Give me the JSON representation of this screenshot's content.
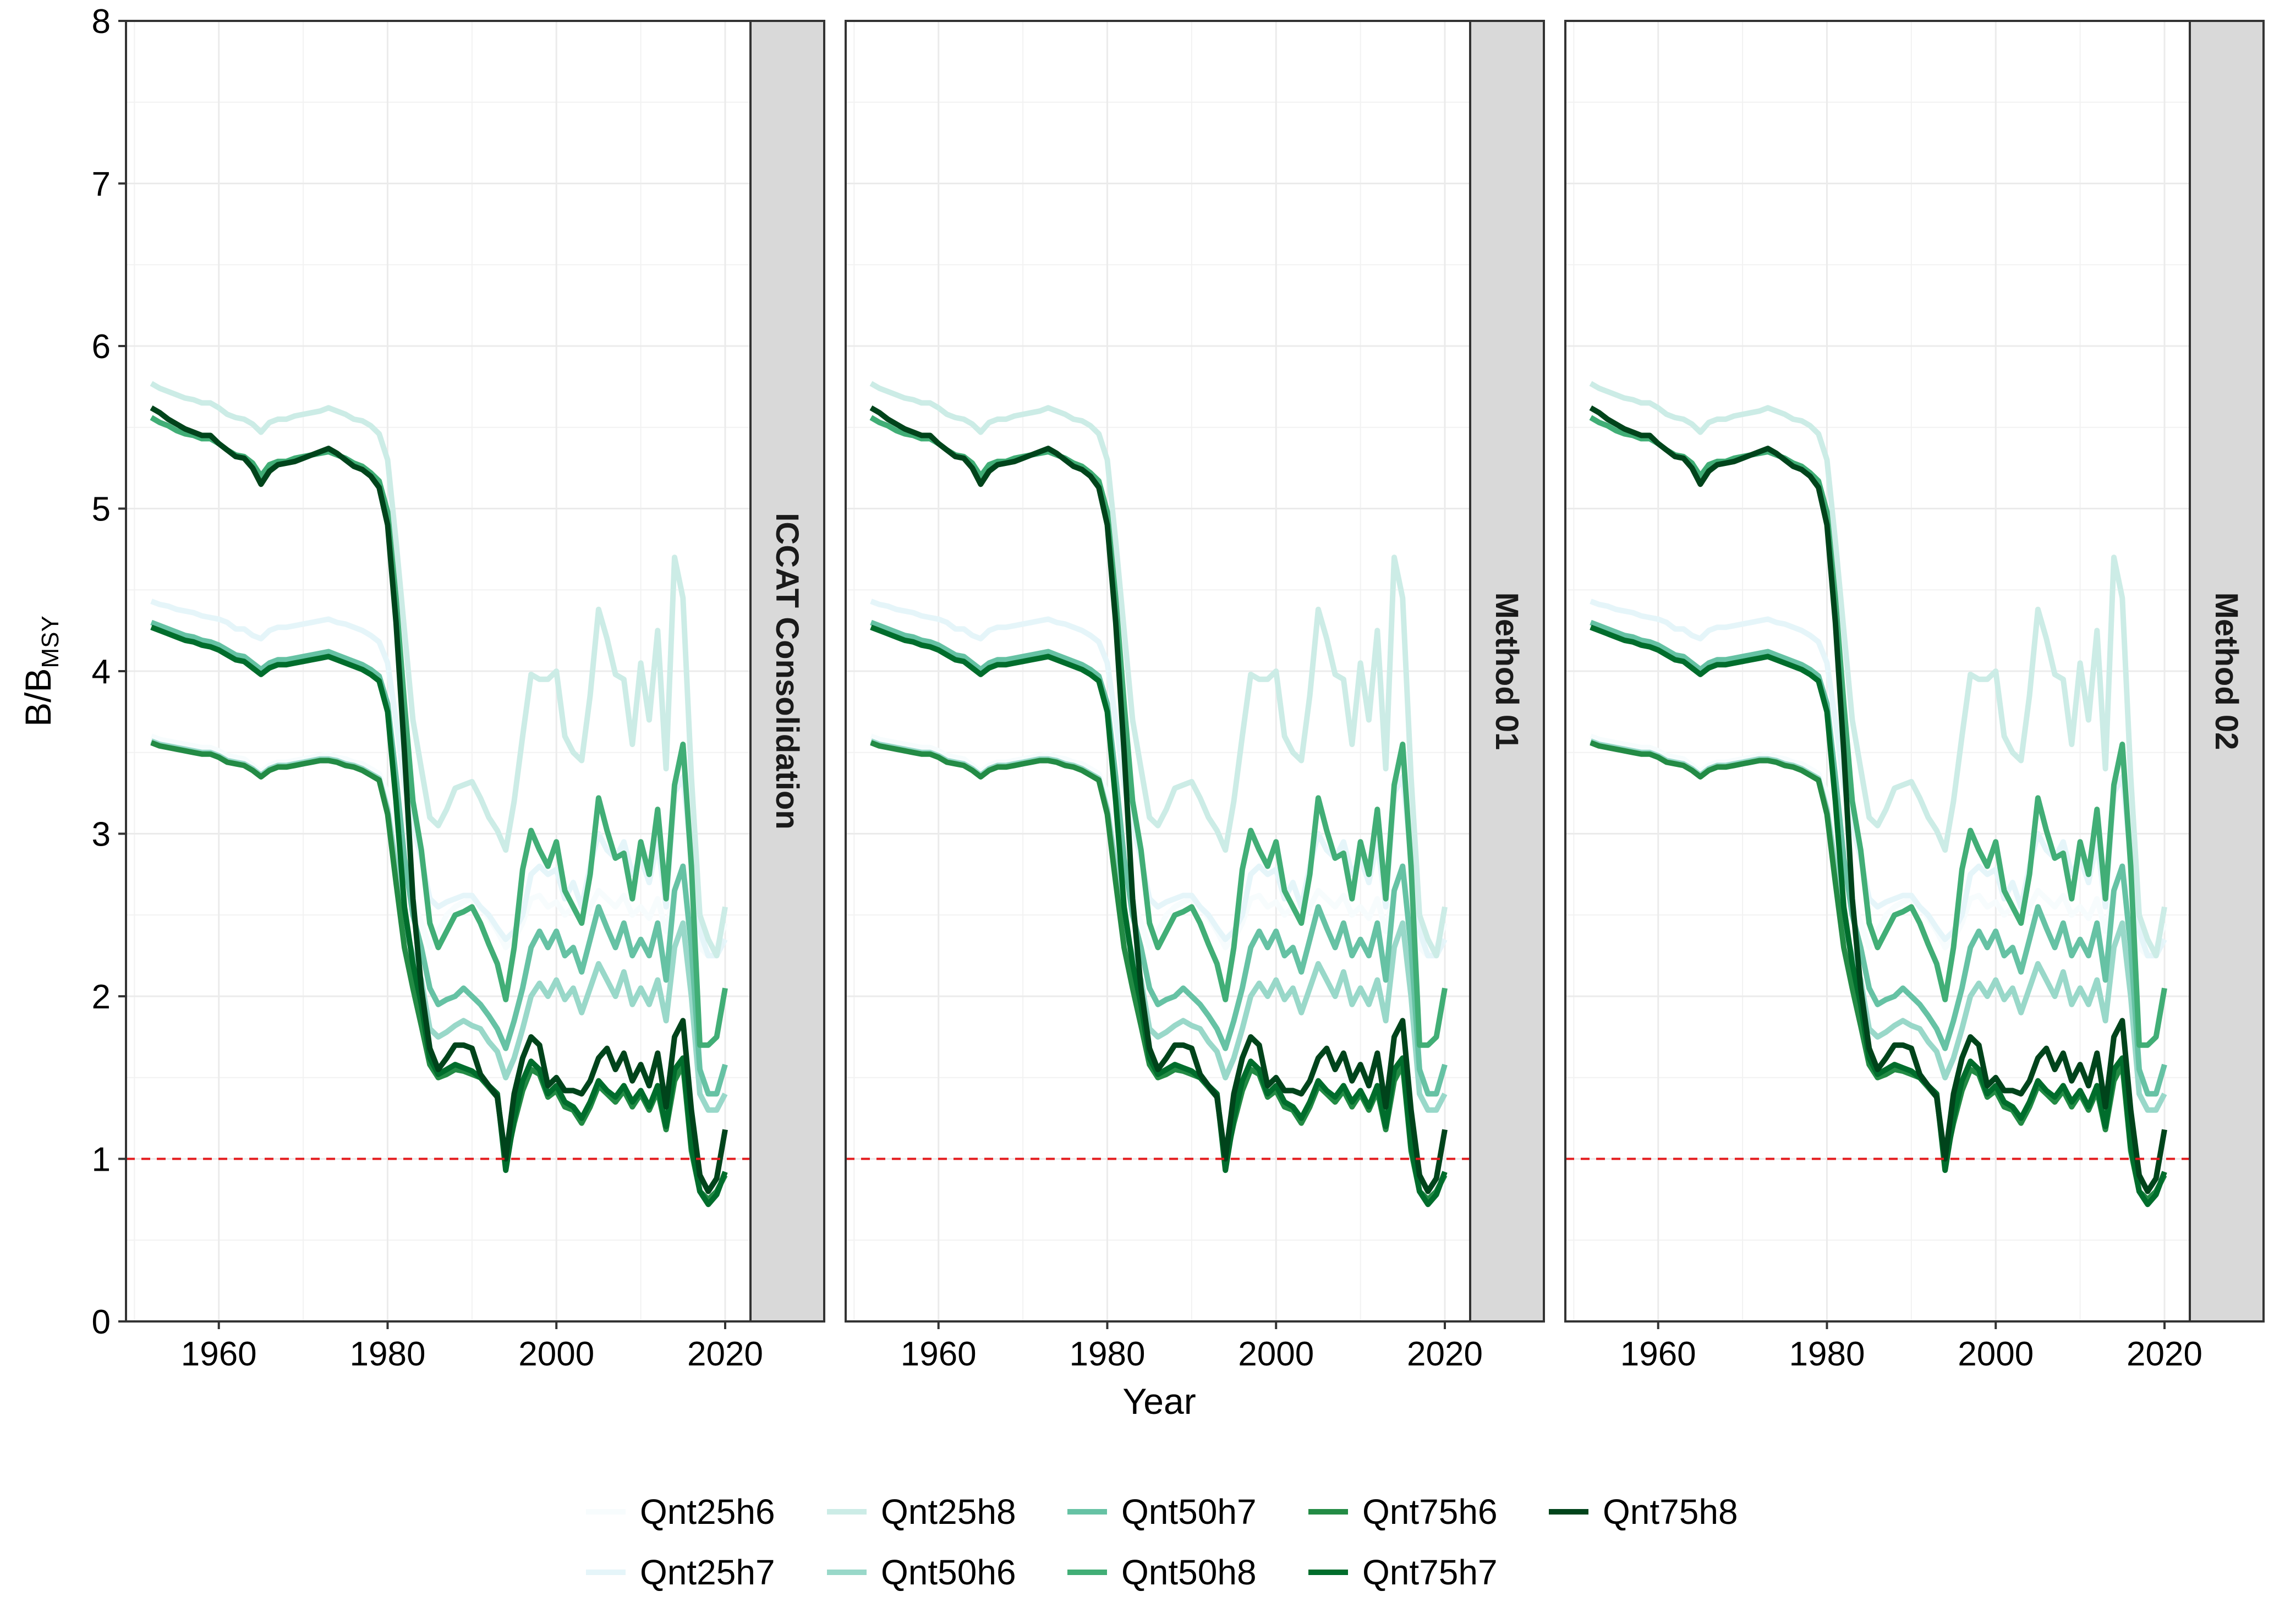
{
  "chart_data": {
    "type": "line",
    "xlabel": "Year",
    "ylabel_main": "B/B",
    "ylabel_sub": "MSY",
    "ylim": [
      0,
      8
    ],
    "xlim": [
      1949,
      2023
    ],
    "yticks": [
      0,
      1,
      2,
      3,
      4,
      5,
      6,
      7,
      8
    ],
    "xticks": [
      1960,
      1980,
      2000,
      2020
    ],
    "grid": true,
    "legend_position": "bottom",
    "reference_line": {
      "y": 1,
      "color": "#e41a1c",
      "style": "dashed"
    },
    "panels": [
      "ICCAT Consolidation",
      "Method 01",
      "Method 02"
    ],
    "x": [
      1952,
      1953,
      1954,
      1955,
      1956,
      1957,
      1958,
      1959,
      1960,
      1961,
      1962,
      1963,
      1964,
      1965,
      1966,
      1967,
      1968,
      1969,
      1970,
      1971,
      1972,
      1973,
      1974,
      1975,
      1976,
      1977,
      1978,
      1979,
      1980,
      1981,
      1982,
      1983,
      1984,
      1985,
      1986,
      1987,
      1988,
      1989,
      1990,
      1991,
      1992,
      1993,
      1994,
      1995,
      1996,
      1997,
      1998,
      1999,
      2000,
      2001,
      2002,
      2003,
      2004,
      2005,
      2006,
      2007,
      2008,
      2009,
      2010,
      2011,
      2012,
      2013,
      2014,
      2015,
      2016,
      2017,
      2018,
      2019,
      2020
    ],
    "series": [
      {
        "name": "Qnt25h6",
        "color": "#f7fcfd",
        "values": [
          3.6,
          3.58,
          3.57,
          3.56,
          3.55,
          3.54,
          3.53,
          3.53,
          3.51,
          3.48,
          3.47,
          3.46,
          3.42,
          3.38,
          3.42,
          3.44,
          3.44,
          3.45,
          3.46,
          3.47,
          3.48,
          3.49,
          3.47,
          3.46,
          3.44,
          3.43,
          3.4,
          3.37,
          3.25,
          3.0,
          2.75,
          2.6,
          2.45,
          2.3,
          2.4,
          2.5,
          2.55,
          2.58,
          2.6,
          2.55,
          2.48,
          2.4,
          2.3,
          2.35,
          2.45,
          2.6,
          2.62,
          2.55,
          2.58,
          2.5,
          2.55,
          2.45,
          2.55,
          2.65,
          2.6,
          2.55,
          2.62,
          2.5,
          2.55,
          2.48,
          2.6,
          2.4,
          2.65,
          2.75,
          2.55,
          2.3,
          2.25,
          2.3,
          2.45
        ]
      },
      {
        "name": "Qnt25h7",
        "color": "#e5f5f9",
        "values": [
          4.43,
          4.41,
          4.4,
          4.38,
          4.37,
          4.36,
          4.34,
          4.33,
          4.32,
          4.3,
          4.26,
          4.26,
          4.22,
          4.2,
          4.25,
          4.27,
          4.27,
          4.28,
          4.29,
          4.3,
          4.31,
          4.32,
          4.3,
          4.29,
          4.27,
          4.25,
          4.22,
          4.18,
          4.05,
          3.7,
          3.3,
          3.05,
          2.85,
          2.6,
          2.55,
          2.58,
          2.6,
          2.62,
          2.62,
          2.55,
          2.5,
          2.42,
          2.35,
          2.4,
          2.5,
          2.75,
          2.8,
          2.75,
          2.78,
          2.6,
          2.7,
          2.55,
          2.8,
          3.0,
          2.9,
          2.85,
          2.95,
          2.75,
          2.85,
          2.7,
          2.95,
          2.55,
          3.25,
          3.35,
          2.85,
          2.4,
          2.25,
          2.25,
          2.35
        ]
      },
      {
        "name": "Qnt25h8",
        "color": "#ccece6",
        "values": [
          5.77,
          5.74,
          5.72,
          5.7,
          5.68,
          5.67,
          5.65,
          5.65,
          5.62,
          5.58,
          5.56,
          5.55,
          5.52,
          5.47,
          5.53,
          5.55,
          5.55,
          5.57,
          5.58,
          5.59,
          5.6,
          5.62,
          5.6,
          5.58,
          5.55,
          5.54,
          5.51,
          5.46,
          5.3,
          4.8,
          4.25,
          3.7,
          3.4,
          3.1,
          3.05,
          3.15,
          3.28,
          3.3,
          3.32,
          3.22,
          3.1,
          3.02,
          2.9,
          3.2,
          3.6,
          3.98,
          3.95,
          3.95,
          4.0,
          3.6,
          3.5,
          3.45,
          3.85,
          4.38,
          4.2,
          3.98,
          3.95,
          3.55,
          4.05,
          3.7,
          4.25,
          3.4,
          4.7,
          4.45,
          3.35,
          2.5,
          2.35,
          2.25,
          2.55
        ]
      },
      {
        "name": "Qnt50h6",
        "color": "#99d8c9",
        "values": [
          3.57,
          3.55,
          3.54,
          3.53,
          3.52,
          3.51,
          3.5,
          3.5,
          3.48,
          3.45,
          3.44,
          3.43,
          3.4,
          3.36,
          3.4,
          3.42,
          3.42,
          3.43,
          3.44,
          3.45,
          3.46,
          3.46,
          3.45,
          3.43,
          3.42,
          3.4,
          3.37,
          3.34,
          3.15,
          2.8,
          2.45,
          2.25,
          2.1,
          1.8,
          1.75,
          1.78,
          1.82,
          1.85,
          1.82,
          1.8,
          1.72,
          1.66,
          1.5,
          1.62,
          1.8,
          2.0,
          2.08,
          2.0,
          2.1,
          1.98,
          2.05,
          1.9,
          2.05,
          2.2,
          2.1,
          2.0,
          2.15,
          1.95,
          2.05,
          1.95,
          2.1,
          1.85,
          2.3,
          2.45,
          2.0,
          1.4,
          1.3,
          1.3,
          1.4
        ]
      },
      {
        "name": "Qnt50h7",
        "color": "#66c2a4",
        "values": [
          4.3,
          4.28,
          4.26,
          4.24,
          4.22,
          4.21,
          4.19,
          4.18,
          4.16,
          4.13,
          4.1,
          4.09,
          4.05,
          4.01,
          4.05,
          4.07,
          4.07,
          4.08,
          4.09,
          4.1,
          4.11,
          4.12,
          4.1,
          4.08,
          4.06,
          4.04,
          4.01,
          3.97,
          3.8,
          3.35,
          2.85,
          2.5,
          2.3,
          2.05,
          1.95,
          1.98,
          2.0,
          2.05,
          2.0,
          1.95,
          1.88,
          1.8,
          1.68,
          1.85,
          2.05,
          2.3,
          2.4,
          2.3,
          2.4,
          2.25,
          2.3,
          2.15,
          2.35,
          2.55,
          2.42,
          2.3,
          2.45,
          2.25,
          2.35,
          2.25,
          2.45,
          2.1,
          2.65,
          2.8,
          2.3,
          1.55,
          1.4,
          1.4,
          1.58
        ]
      },
      {
        "name": "Qnt50h8",
        "color": "#41ae76",
        "values": [
          5.56,
          5.53,
          5.51,
          5.48,
          5.46,
          5.45,
          5.43,
          5.43,
          5.4,
          5.36,
          5.33,
          5.32,
          5.28,
          5.2,
          5.27,
          5.29,
          5.29,
          5.31,
          5.32,
          5.33,
          5.34,
          5.35,
          5.33,
          5.31,
          5.28,
          5.26,
          5.22,
          5.17,
          4.98,
          4.45,
          3.8,
          3.2,
          2.9,
          2.45,
          2.3,
          2.4,
          2.5,
          2.52,
          2.55,
          2.45,
          2.32,
          2.2,
          1.98,
          2.3,
          2.78,
          3.02,
          2.9,
          2.8,
          2.95,
          2.65,
          2.55,
          2.45,
          2.75,
          3.22,
          3.02,
          2.85,
          2.88,
          2.6,
          2.95,
          2.75,
          3.15,
          2.6,
          3.3,
          3.55,
          2.8,
          1.7,
          1.7,
          1.75,
          2.05
        ]
      },
      {
        "name": "Qnt75h6",
        "color": "#238b45",
        "values": [
          3.56,
          3.54,
          3.53,
          3.52,
          3.51,
          3.5,
          3.49,
          3.49,
          3.47,
          3.44,
          3.43,
          3.42,
          3.39,
          3.35,
          3.39,
          3.41,
          3.41,
          3.42,
          3.43,
          3.44,
          3.45,
          3.45,
          3.44,
          3.42,
          3.41,
          3.39,
          3.36,
          3.33,
          3.12,
          2.7,
          2.3,
          2.05,
          1.82,
          1.58,
          1.5,
          1.52,
          1.55,
          1.54,
          1.52,
          1.5,
          1.44,
          1.38,
          0.98,
          1.22,
          1.42,
          1.55,
          1.52,
          1.38,
          1.42,
          1.32,
          1.3,
          1.22,
          1.32,
          1.45,
          1.4,
          1.35,
          1.42,
          1.32,
          1.4,
          1.3,
          1.42,
          1.18,
          1.48,
          1.58,
          1.05,
          0.8,
          0.75,
          0.8,
          0.9
        ]
      },
      {
        "name": "Qnt75h7",
        "color": "#006d2c",
        "values": [
          4.27,
          4.25,
          4.23,
          4.21,
          4.19,
          4.18,
          4.16,
          4.15,
          4.13,
          4.1,
          4.07,
          4.06,
          4.02,
          3.98,
          4.02,
          4.04,
          4.04,
          4.05,
          4.06,
          4.07,
          4.08,
          4.09,
          4.07,
          4.05,
          4.03,
          4.01,
          3.98,
          3.94,
          3.75,
          3.2,
          2.55,
          2.2,
          1.95,
          1.62,
          1.52,
          1.55,
          1.58,
          1.56,
          1.54,
          1.5,
          1.45,
          1.4,
          0.93,
          1.25,
          1.48,
          1.6,
          1.55,
          1.4,
          1.45,
          1.35,
          1.32,
          1.25,
          1.35,
          1.48,
          1.42,
          1.38,
          1.45,
          1.35,
          1.42,
          1.32,
          1.45,
          1.2,
          1.55,
          1.62,
          1.08,
          0.8,
          0.72,
          0.78,
          0.92
        ]
      },
      {
        "name": "Qnt75h8",
        "color": "#00441b",
        "values": [
          5.62,
          5.59,
          5.55,
          5.52,
          5.49,
          5.47,
          5.45,
          5.45,
          5.4,
          5.36,
          5.32,
          5.31,
          5.25,
          5.15,
          5.23,
          5.27,
          5.28,
          5.29,
          5.31,
          5.33,
          5.35,
          5.37,
          5.34,
          5.3,
          5.26,
          5.24,
          5.2,
          5.13,
          4.9,
          4.3,
          3.5,
          2.6,
          2.05,
          1.68,
          1.55,
          1.62,
          1.7,
          1.7,
          1.68,
          1.52,
          1.45,
          1.38,
          1.0,
          1.4,
          1.62,
          1.75,
          1.7,
          1.45,
          1.5,
          1.42,
          1.42,
          1.4,
          1.48,
          1.62,
          1.68,
          1.55,
          1.65,
          1.48,
          1.58,
          1.45,
          1.65,
          1.32,
          1.75,
          1.85,
          1.3,
          0.9,
          0.8,
          0.88,
          1.18
        ]
      }
    ]
  }
}
